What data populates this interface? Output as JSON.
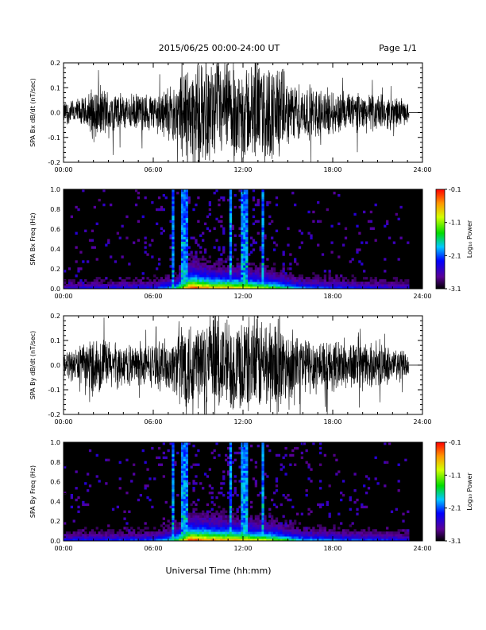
{
  "header": {
    "title": "2015/06/25  00:00-24:00 UT",
    "page": "Page 1/1"
  },
  "xaxis_label": "Universal Time (hh:mm)",
  "chart_data": [
    {
      "type": "line",
      "ylabel": "SPA Bx dB/dt (nT/sec)",
      "xlim": [
        0,
        24
      ],
      "ylim": [
        -0.2,
        0.2
      ],
      "x_tick_labels": [
        "00:00",
        "06:00",
        "12:00",
        "18:00",
        "24:00"
      ],
      "y_tick_labels": [
        "-0.2",
        "-0.1",
        "0.0",
        "0.1",
        "0.2"
      ],
      "envelope": [
        {
          "t": 0.0,
          "amp": 0.05
        },
        {
          "t": 1.5,
          "amp": 0.07
        },
        {
          "t": 2.0,
          "amp": 0.13
        },
        {
          "t": 4.0,
          "amp": 0.08
        },
        {
          "t": 6.0,
          "amp": 0.09
        },
        {
          "t": 7.5,
          "amp": 0.13
        },
        {
          "t": 8.0,
          "amp": 0.22
        },
        {
          "t": 14.5,
          "amp": 0.22
        },
        {
          "t": 15.0,
          "amp": 0.14
        },
        {
          "t": 18.0,
          "amp": 0.1
        },
        {
          "t": 22.5,
          "amp": 0.07
        },
        {
          "t": 23.0,
          "amp": 0.04
        }
      ],
      "data_end": 23.1
    },
    {
      "type": "heatmap",
      "ylabel": "SPA Bx Freq (Hz)",
      "xlim": [
        0,
        24
      ],
      "ylim": [
        0,
        1.0
      ],
      "x_tick_labels": [
        "00:00",
        "06:00",
        "12:00",
        "18:00",
        "24:00"
      ],
      "y_tick_labels": [
        "0.0",
        "0.2",
        "0.4",
        "0.6",
        "0.8",
        "1.0"
      ],
      "colorbar_label": "Log₁₀ Power",
      "colorbar_ticks": [
        "-0.1",
        "-1.1",
        "-2.1",
        "-3.1"
      ],
      "colorbar_range": [
        -3.1,
        -0.1
      ],
      "activity": [
        {
          "t": 0.0,
          "level": 0.25
        },
        {
          "t": 6.0,
          "level": 0.3
        },
        {
          "t": 7.5,
          "level": 0.5
        },
        {
          "t": 8.5,
          "level": 1.0
        },
        {
          "t": 10.0,
          "level": 0.85
        },
        {
          "t": 12.0,
          "level": 0.8
        },
        {
          "t": 14.0,
          "level": 0.65
        },
        {
          "t": 16.0,
          "level": 0.4
        },
        {
          "t": 20.0,
          "level": 0.3
        },
        {
          "t": 23.0,
          "level": 0.25
        }
      ],
      "bright_lines": [
        7.3,
        8.0,
        8.3,
        11.2,
        12.0,
        12.3,
        13.3
      ],
      "data_end": 23.1
    },
    {
      "type": "line",
      "ylabel": "SPA By dB/dt (nT/sec)",
      "xlim": [
        0,
        24
      ],
      "ylim": [
        -0.2,
        0.2
      ],
      "x_tick_labels": [
        "00:00",
        "06:00",
        "12:00",
        "18:00",
        "24:00"
      ],
      "y_tick_labels": [
        "-0.2",
        "-0.1",
        "0.0",
        "0.1",
        "0.2"
      ],
      "envelope": [
        {
          "t": 0.0,
          "amp": 0.06
        },
        {
          "t": 1.5,
          "amp": 0.09
        },
        {
          "t": 2.0,
          "amp": 0.14
        },
        {
          "t": 4.0,
          "amp": 0.09
        },
        {
          "t": 6.0,
          "amp": 0.1
        },
        {
          "t": 7.5,
          "amp": 0.13
        },
        {
          "t": 7.8,
          "amp": 0.22
        },
        {
          "t": 14.5,
          "amp": 0.22
        },
        {
          "t": 15.0,
          "amp": 0.15
        },
        {
          "t": 18.0,
          "amp": 0.12
        },
        {
          "t": 22.5,
          "amp": 0.08
        },
        {
          "t": 23.0,
          "amp": 0.05
        }
      ],
      "data_end": 23.1
    },
    {
      "type": "heatmap",
      "ylabel": "SPA By Freq (Hz)",
      "xlim": [
        0,
        24
      ],
      "ylim": [
        0,
        1.0
      ],
      "x_tick_labels": [
        "00:00",
        "06:00",
        "12:00",
        "18:00",
        "24:00"
      ],
      "y_tick_labels": [
        "0.0",
        "0.2",
        "0.4",
        "0.6",
        "0.8",
        "1.0"
      ],
      "colorbar_label": "Log₁₀ Power",
      "colorbar_ticks": [
        "-0.1",
        "-1.1",
        "-2.1",
        "-3.1"
      ],
      "colorbar_range": [
        -3.1,
        -0.1
      ],
      "activity": [
        {
          "t": 0.0,
          "level": 0.3
        },
        {
          "t": 6.0,
          "level": 0.35
        },
        {
          "t": 7.5,
          "level": 0.55
        },
        {
          "t": 8.5,
          "level": 1.0
        },
        {
          "t": 10.0,
          "level": 0.9
        },
        {
          "t": 12.0,
          "level": 0.85
        },
        {
          "t": 14.0,
          "level": 0.7
        },
        {
          "t": 16.0,
          "level": 0.45
        },
        {
          "t": 20.0,
          "level": 0.35
        },
        {
          "t": 23.0,
          "level": 0.3
        }
      ],
      "bright_lines": [
        7.3,
        8.0,
        8.3,
        11.2,
        12.0,
        12.3,
        13.3
      ],
      "data_end": 23.1
    }
  ]
}
